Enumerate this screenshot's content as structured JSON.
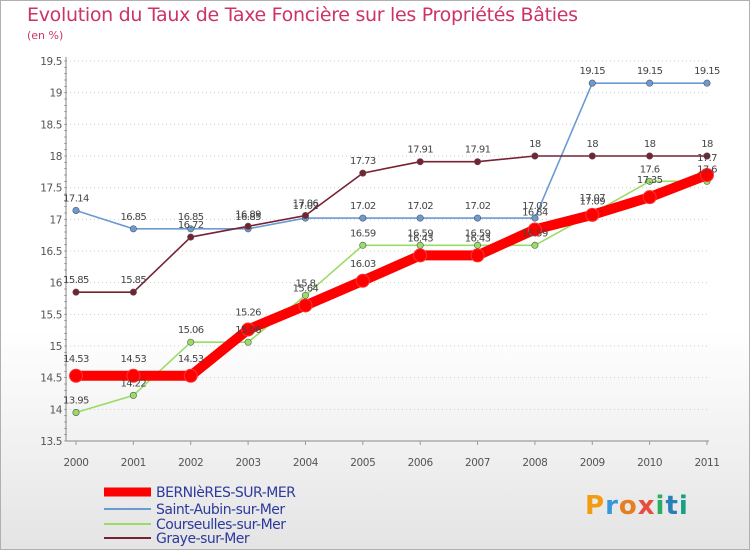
{
  "title": "Evolution du Taux de Taxe Foncière sur les Propriétés Bâties",
  "unit": "(en %)",
  "logo": "Proxiti",
  "colors": {
    "title": "#cc3366",
    "axis": "#888888",
    "grid": "#cccccc",
    "legend_text": "#2d3a9c"
  },
  "chart_data": {
    "type": "line",
    "title": "Evolution du Taux de Taxe Foncière sur les Propriétés Bâties",
    "ylabel": "(en %)",
    "xlabel": "",
    "x": [
      "2000",
      "2001",
      "2002",
      "2003",
      "2004",
      "2005",
      "2006",
      "2007",
      "2008",
      "2009",
      "2010",
      "2011"
    ],
    "ylim": [
      13.5,
      19.5
    ],
    "yticks": [
      "13.5",
      "14",
      "14.5",
      "15",
      "15.5",
      "16",
      "16.5",
      "17",
      "17.5",
      "18",
      "18.5",
      "19",
      "19.5"
    ],
    "grid": "horizontal",
    "legend": "bottom",
    "series": [
      {
        "name": "BERNIèRES-SUR-MER",
        "color": "#ff0000",
        "values": [
          14.53,
          14.53,
          14.53,
          15.26,
          15.64,
          16.03,
          16.43,
          16.43,
          16.84,
          17.07,
          17.35,
          17.7
        ],
        "labels": [
          "14.53",
          "14.53",
          "14.53",
          "15.26",
          "15.64",
          "16.03",
          "16.43",
          "16.43",
          "16.84",
          "17.07",
          "17.35",
          "17.7"
        ]
      },
      {
        "name": "Saint-Aubin-sur-Mer",
        "color": "#6b9bd2",
        "values": [
          17.14,
          16.85,
          16.85,
          16.85,
          17.02,
          17.02,
          17.02,
          17.02,
          17.02,
          19.15,
          19.15,
          19.15
        ],
        "labels": [
          "17.14",
          "16.85",
          "16.85",
          "16.85",
          "17.02",
          "17.02",
          "17.02",
          "17.02",
          "17.02",
          "19.15",
          "19.15",
          "19.15"
        ]
      },
      {
        "name": "Courseulles-sur-Mer",
        "color": "#99dd66",
        "values": [
          13.95,
          14.22,
          15.06,
          15.06,
          15.8,
          16.59,
          16.59,
          16.59,
          16.59,
          17.09,
          17.6,
          17.6
        ],
        "labels": [
          "13.95",
          "14.22",
          "15.06",
          "15.06",
          "15.8",
          "16.59",
          "16.59",
          "16.59",
          "16.59",
          "17.09",
          "17.6",
          "17.6"
        ]
      },
      {
        "name": "Graye-sur-Mer",
        "color": "#772233",
        "values": [
          15.85,
          15.85,
          16.72,
          16.89,
          17.06,
          17.73,
          17.91,
          17.91,
          18,
          18,
          18,
          18
        ],
        "labels": [
          "15.85",
          "15.85",
          "16.72",
          "16.89",
          "17.06",
          "17.73",
          "17.91",
          "17.91",
          "18",
          "18",
          "18",
          "18"
        ]
      }
    ]
  }
}
